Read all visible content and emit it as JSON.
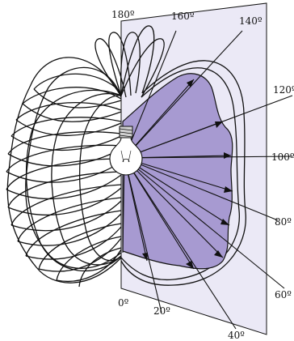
{
  "colors": {
    "plane_fill": "#ebe9f6",
    "distribution_fill": "#a79ad1",
    "stroke": "#111111"
  },
  "angle_labels": {
    "a0": "0º",
    "a20": "20º",
    "a40": "40º",
    "a60": "60º",
    "a80": "80º",
    "a100": "100º",
    "a120": "120º",
    "a140": "140º",
    "a160": "160º",
    "a180": "180º"
  }
}
